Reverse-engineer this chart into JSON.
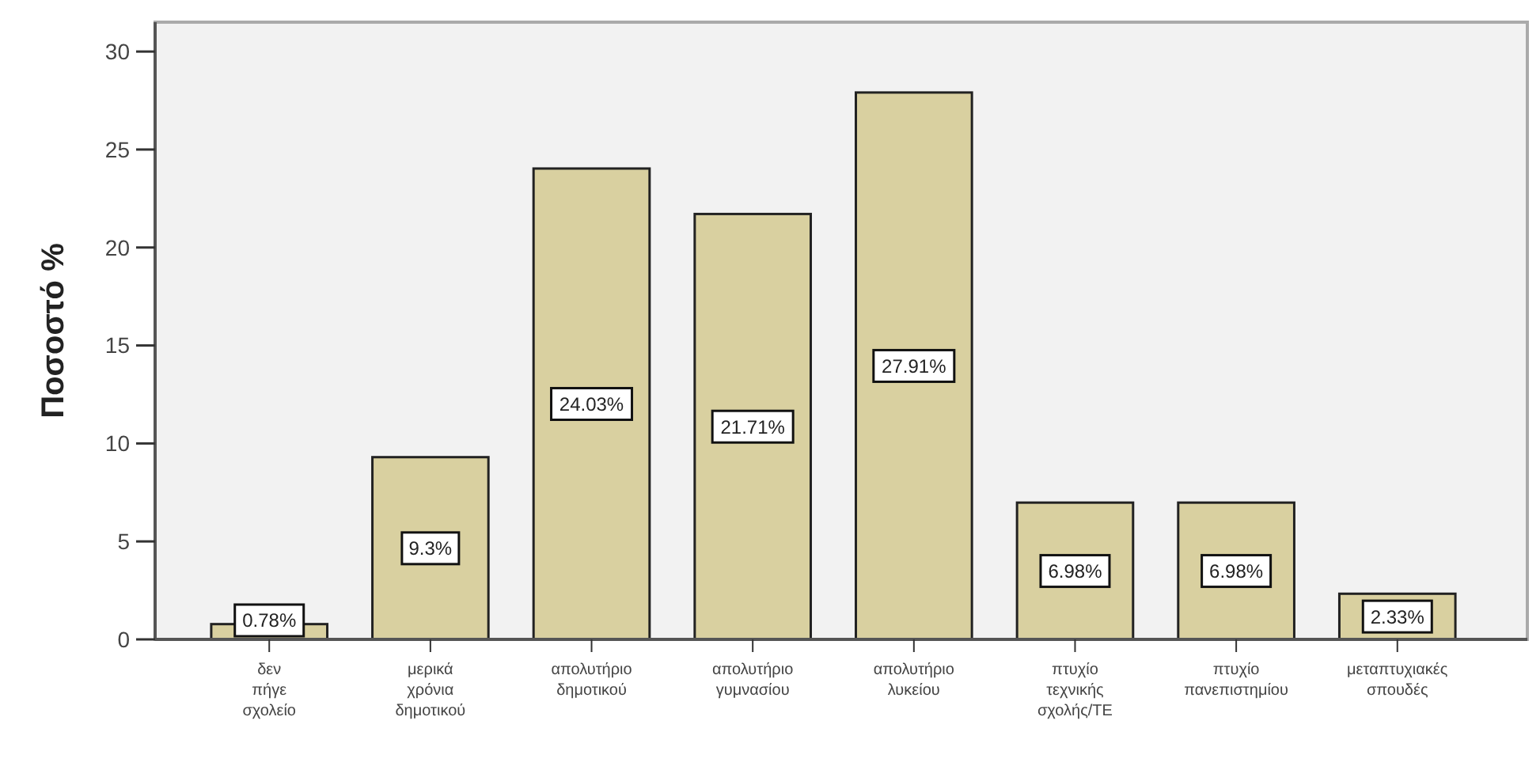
{
  "chart_data": {
    "type": "bar",
    "ylabel": "Ποσοστό %",
    "categories": [
      "δεν πήγε σχολείο",
      "μερικά χρόνια δημοτικού",
      "απολυτήριο δημοτικού",
      "απολυτήριο γυμνασίου",
      "απολυτήριο λυκείου",
      "πτυχίο τεχνικής σχολής/ΤΕ",
      "πτυχίο πανεπιστημίου",
      "μεταπτυχιακές σπουδές"
    ],
    "values": [
      0.78,
      9.3,
      24.03,
      21.71,
      27.91,
      6.98,
      6.98,
      2.33
    ],
    "value_labels": [
      "0.78%",
      "9.3%",
      "24.03%",
      "21.71%",
      "27.91%",
      "6.98%",
      "6.98%",
      "2.33%"
    ],
    "color": "#d9d0a0",
    "ylim": [
      0,
      31.5
    ],
    "yticks": [
      0,
      5,
      10,
      15,
      20,
      25,
      30
    ],
    "grid": false
  }
}
